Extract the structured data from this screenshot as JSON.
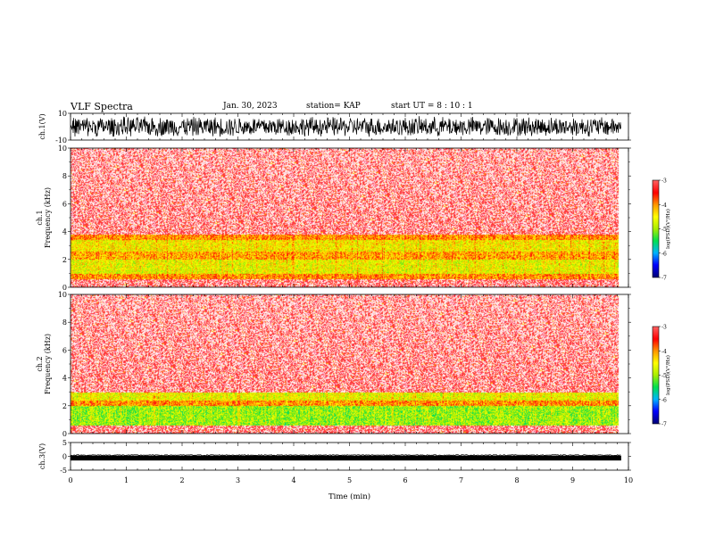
{
  "header": {
    "title": "VLF Spectra",
    "date": "Jan. 30, 2023",
    "station": "station= KAP",
    "start": "start  UT  =   8 : 10 : 1"
  },
  "colors": {
    "scale": [
      "#00007a",
      "#0000ff",
      "#00b4ff",
      "#00e050",
      "#aaee00",
      "#ffff00",
      "#ff9800",
      "#ff0000",
      "#ff6060",
      "#ffffff"
    ]
  },
  "chart_data": [
    {
      "type": "line",
      "ylabel": "ch.1(V)",
      "ylim": [
        -10,
        10
      ],
      "yticks": [
        "10",
        "-10"
      ],
      "xlim": [
        0,
        10
      ],
      "description_values": {
        "signal_range": [
          -8,
          8
        ],
        "style": "dense noisy waveform"
      }
    },
    {
      "type": "heatmap",
      "ylabel": "ch.1\nFrequency  (kHz)",
      "ylim": [
        0,
        10
      ],
      "yticks": [
        "0",
        "2",
        "4",
        "6",
        "8",
        "10"
      ],
      "xlim": [
        0,
        10
      ],
      "colorbar": {
        "label": "log(PSD)(V²/Hz)",
        "range": [
          -7,
          -3
        ],
        "ticks": [
          "-3",
          "-4",
          "-5",
          "-6",
          "-7"
        ]
      },
      "bands_khz": [
        {
          "from": 0.0,
          "to": 0.6,
          "level": -3.2
        },
        {
          "from": 0.6,
          "to": 1.0,
          "level": -4.0
        },
        {
          "from": 1.0,
          "to": 2.0,
          "level": -4.6
        },
        {
          "from": 2.0,
          "to": 2.6,
          "level": -4.1
        },
        {
          "from": 2.6,
          "to": 3.4,
          "level": -4.5
        },
        {
          "from": 3.4,
          "to": 3.8,
          "level": -4.0
        },
        {
          "from": 3.8,
          "to": 10.0,
          "level": -3.2
        }
      ],
      "data_end_min": 9.82
    },
    {
      "type": "heatmap",
      "ylabel": "ch.2\nFrequency  (kHz)",
      "ylim": [
        0,
        10
      ],
      "yticks": [
        "0",
        "2",
        "4",
        "6",
        "8",
        "10"
      ],
      "xlim": [
        0,
        10
      ],
      "colorbar": {
        "label": "log(PSD)(V²/Hz)",
        "range": [
          -7,
          -3
        ],
        "ticks": [
          "-3",
          "-4",
          "-5",
          "-6",
          "-7"
        ]
      },
      "bands_khz": [
        {
          "from": 0.0,
          "to": 0.6,
          "level": -3.5
        },
        {
          "from": 0.6,
          "to": 2.0,
          "level": -5.0
        },
        {
          "from": 2.0,
          "to": 2.4,
          "level": -4.0
        },
        {
          "from": 2.4,
          "to": 3.0,
          "level": -4.6
        },
        {
          "from": 3.0,
          "to": 10.0,
          "level": -3.3
        }
      ],
      "data_end_min": 9.82
    },
    {
      "type": "line",
      "ylabel": "ch.3(V)",
      "ylim": [
        -5,
        5
      ],
      "yticks": [
        "5",
        "0",
        "-5"
      ],
      "xlim": [
        0,
        10
      ],
      "xlabel": "Time  (min)",
      "xticks": [
        "0",
        "1",
        "2",
        "3",
        "4",
        "5",
        "6",
        "7",
        "8",
        "9",
        "10"
      ],
      "description_values": {
        "signal_range": [
          -1.5,
          0.3
        ],
        "style": "thick noisy band"
      }
    }
  ]
}
